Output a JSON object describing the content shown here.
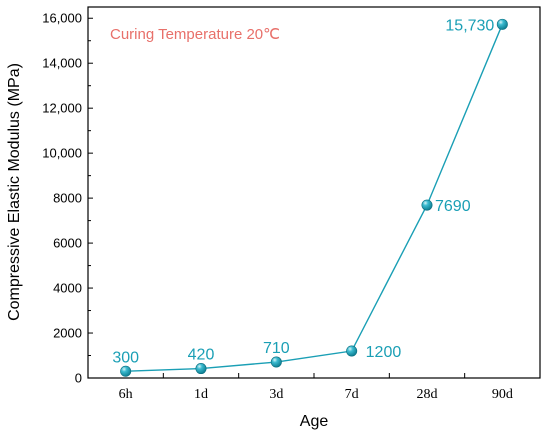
{
  "chart_data": {
    "type": "line",
    "categories": [
      "6h",
      "1d",
      "3d",
      "7d",
      "28d",
      "90d"
    ],
    "series": [
      {
        "values": [
          300,
          420,
          710,
          1200,
          7690,
          15730
        ],
        "data_labels": [
          "300",
          "420",
          "710",
          "1200",
          "7690",
          "15,730"
        ],
        "color": "#1a9fb5"
      }
    ],
    "annotation": "Curing Temperature 20℃",
    "annotation_color": "#e8706a",
    "xlabel": "Age",
    "ylabel": "Compressive Elastic Modulus (MPa)",
    "ylim": [
      0,
      16500
    ],
    "yticks": [
      0,
      2000,
      4000,
      6000,
      8000,
      10000,
      12000,
      14000,
      16000
    ],
    "ytick_labels": [
      "0",
      "2000",
      "4000",
      "6000",
      "8000",
      "10,000",
      "12,000",
      "14,000",
      "16,000"
    ],
    "grid": false,
    "legend": "none"
  }
}
